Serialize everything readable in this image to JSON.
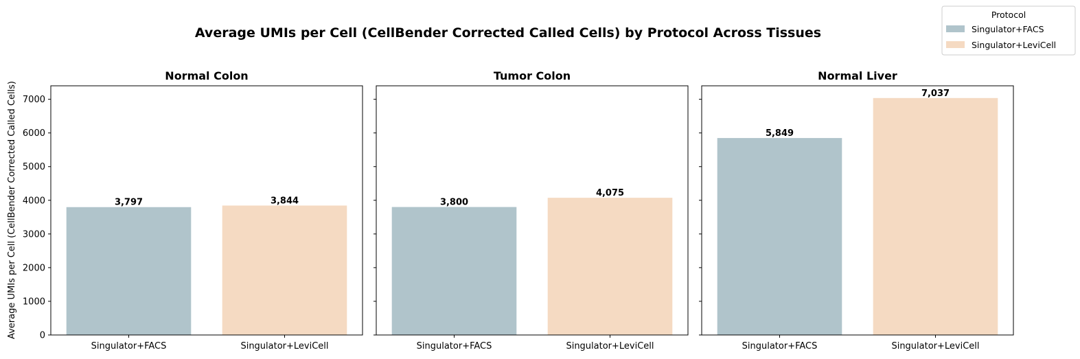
{
  "chart_data": {
    "type": "bar",
    "title": "Average UMIs per Cell (CellBender Corrected Called Cells) by Protocol Across Tissues",
    "ylabel": "Average UMIs per Cell (CellBender Corrected Called Cells)",
    "ylim": [
      0,
      7400
    ],
    "yticks": [
      0,
      1000,
      2000,
      3000,
      4000,
      5000,
      6000,
      7000
    ],
    "categories": [
      "Singulator+FACS",
      "Singulator+LeviCell"
    ],
    "colors": [
      "#b0c4cb",
      "#f5dac2"
    ],
    "legend": {
      "title": "Protocol",
      "placement": "top-right",
      "entries": [
        "Singulator+FACS",
        "Singulator+LeviCell"
      ]
    },
    "panels": [
      {
        "title": "Normal Colon",
        "values": [
          3797,
          3844
        ],
        "labels": [
          "3,797",
          "3,844"
        ]
      },
      {
        "title": "Tumor Colon",
        "values": [
          3800,
          4075
        ],
        "labels": [
          "3,800",
          "4,075"
        ]
      },
      {
        "title": "Normal Liver",
        "values": [
          5849,
          7037
        ],
        "labels": [
          "5,849",
          "7,037"
        ]
      }
    ],
    "grid": false
  }
}
